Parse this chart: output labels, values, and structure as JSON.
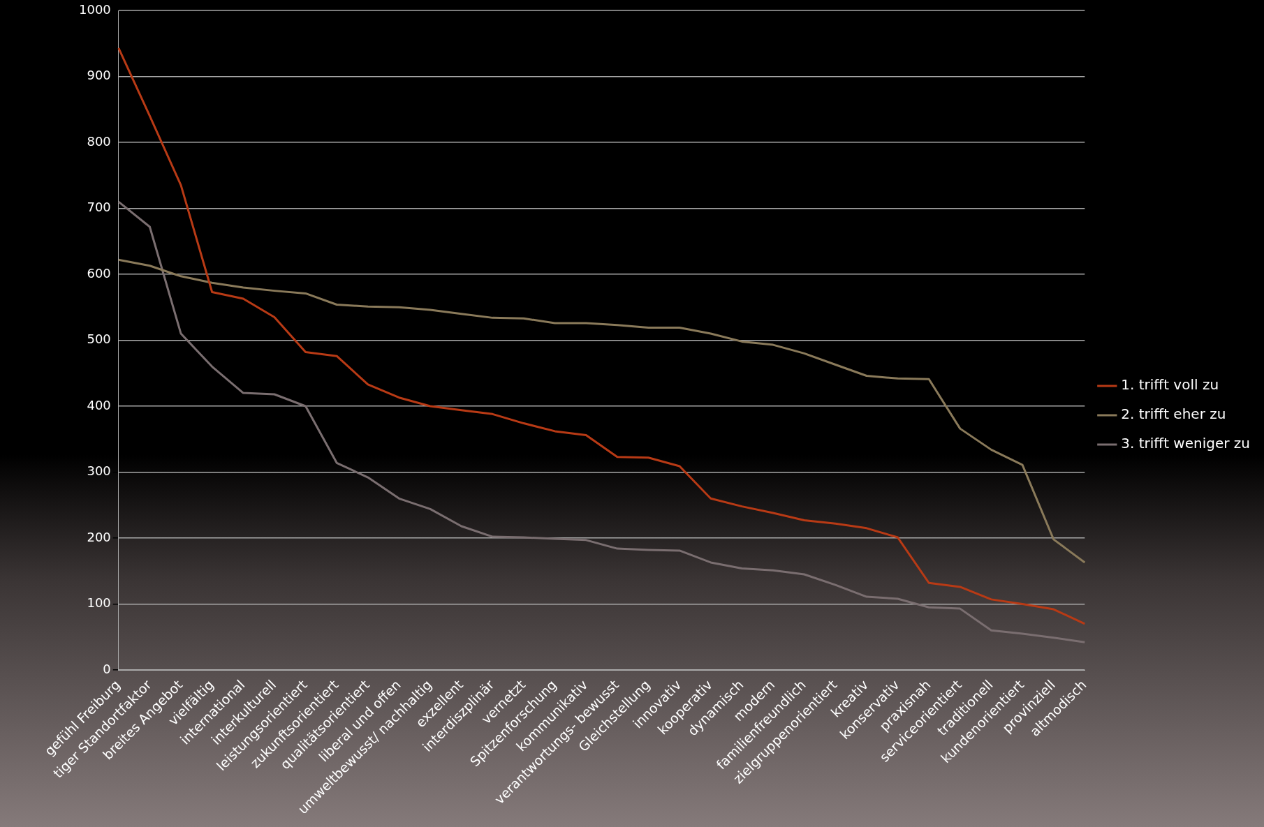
{
  "chart_data": {
    "type": "line",
    "categories": [
      "gefühl Freiburg",
      "tiger Standortfaktor",
      "breites Angebot",
      "vielfältig",
      "international",
      "interkulturell",
      "leistungsorientiert",
      "zukunftsorientiert",
      "qualitätsorientiert",
      "liberal und offen",
      "umweltbewusst/ nachhaltig",
      "exzellent",
      "interdiszplinär",
      "vernetzt",
      "Spitzenforschung",
      "kommunikativ",
      "verantwortungs- bewusst",
      "Gleichstellung",
      "innovativ",
      "kooperativ",
      "dynamisch",
      "modern",
      "familienfreundlich",
      "zielgruppenorientiert",
      "kreativ",
      "konservativ",
      "praxisnah",
      "serviceorientiert",
      "traditionell",
      "kundenorientiert",
      "provinziell",
      "altmodisch"
    ],
    "series": [
      {
        "name": "1. trifft voll zu",
        "color": "#b83a15",
        "values": [
          943,
          840,
          735,
          573,
          563,
          535,
          482,
          476,
          433,
          413,
          400,
          394,
          388,
          374,
          362,
          356,
          323,
          322,
          309,
          260,
          248,
          238,
          227,
          222,
          215,
          201,
          132,
          126,
          107,
          100,
          92,
          70
        ]
      },
      {
        "name": "2. trifft eher zu",
        "color": "#8a7a5a",
        "values": [
          622,
          613,
          597,
          587,
          580,
          575,
          571,
          554,
          551,
          550,
          546,
          540,
          534,
          533,
          526,
          526,
          523,
          519,
          519,
          510,
          498,
          493,
          480,
          463,
          446,
          442,
          441,
          366,
          334,
          311,
          198,
          163
        ]
      },
      {
        "name": "3. trifft weniger zu",
        "color": "#7a6e70",
        "values": [
          710,
          672,
          510,
          460,
          420,
          418,
          400,
          314,
          292,
          260,
          244,
          218,
          202,
          201,
          199,
          197,
          184,
          182,
          181,
          163,
          154,
          151,
          145,
          129,
          111,
          108,
          95,
          93,
          60,
          55,
          49,
          42
        ]
      }
    ],
    "ylim": [
      0,
      1000
    ],
    "yticks": [
      0,
      100,
      200,
      300,
      400,
      500,
      600,
      700,
      800,
      900,
      1000
    ],
    "grid": "y",
    "legend": "right",
    "marker": "none",
    "line_style": "solid"
  }
}
